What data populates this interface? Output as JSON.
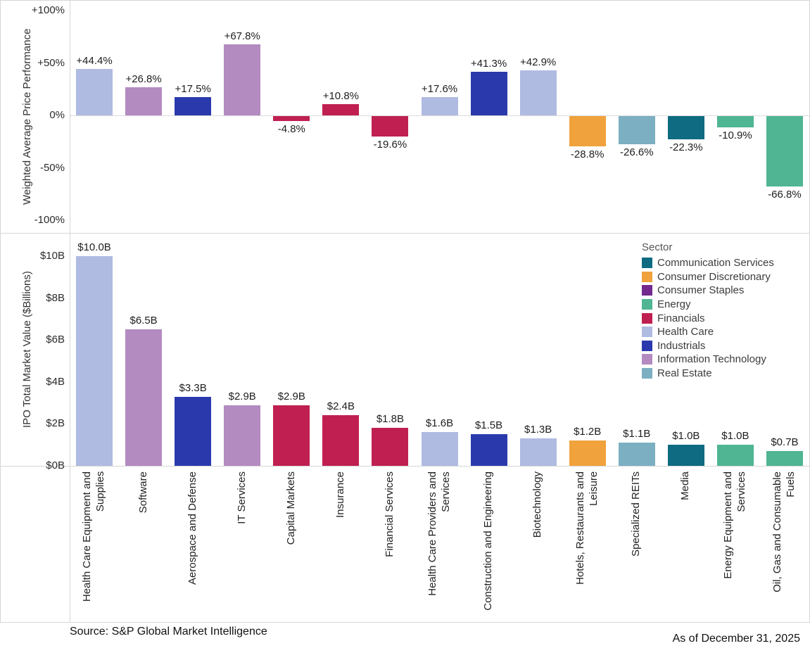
{
  "colors": {
    "sectors": {
      "Communication Services": "#0e6b81",
      "Consumer Discretionary": "#f0a23c",
      "Consumer Staples": "#73298d",
      "Energy": "#4fb592",
      "Financials": "#c02051",
      "Health Care": "#b0bbe2",
      "Industrials": "#2a3aad",
      "Information Technology": "#b38bc1",
      "Real Estate": "#7cafc2"
    },
    "axis_line": "#d6d6d6",
    "zero_line": "#b9b9b9"
  },
  "categories": [
    {
      "name": "Health Care Equipment and\nSupplies",
      "sector": "Health Care"
    },
    {
      "name": "Software",
      "sector": "Information Technology"
    },
    {
      "name": "Aerospace and Defense",
      "sector": "Industrials"
    },
    {
      "name": "IT Services",
      "sector": "Information Technology"
    },
    {
      "name": "Capital Markets",
      "sector": "Financials"
    },
    {
      "name": "Insurance",
      "sector": "Financials"
    },
    {
      "name": "Financial Services",
      "sector": "Financials"
    },
    {
      "name": "Health Care Providers and\nServices",
      "sector": "Health Care"
    },
    {
      "name": "Construction and Engineering",
      "sector": "Industrials"
    },
    {
      "name": "Biotechnology",
      "sector": "Health Care"
    },
    {
      "name": "Hotels, Restaurants and\nLeisure",
      "sector": "Consumer Discretionary"
    },
    {
      "name": "Specialized REITs",
      "sector": "Real Estate"
    },
    {
      "name": "Media",
      "sector": "Communication Services"
    },
    {
      "name": "Energy Equipment and\nServices",
      "sector": "Energy"
    },
    {
      "name": "Oil, Gas and Consumable\nFuels",
      "sector": "Energy"
    }
  ],
  "chart_data": [
    {
      "type": "bar",
      "title": "",
      "ylabel": "Weighted Average Price Performance",
      "ylim": [
        -100,
        100
      ],
      "grid": "zero-dotted-line-only",
      "categories": [
        "Health Care Equipment and Supplies",
        "Software",
        "Aerospace and Defense",
        "IT Services",
        "Capital Markets",
        "Insurance",
        "Financial Services",
        "Health Care Providers and Services",
        "Construction and Engineering",
        "Biotechnology",
        "Hotels, Restaurants and Leisure",
        "Specialized REITs",
        "Media",
        "Energy Equipment and Services",
        "Oil, Gas and Consumable Fuels"
      ],
      "values": [
        44.4,
        26.8,
        17.5,
        67.8,
        -4.8,
        10.8,
        -19.6,
        17.6,
        41.3,
        42.9,
        -28.8,
        -26.6,
        -22.3,
        -10.9,
        -66.8
      ],
      "labels": [
        "+44.4%",
        "+26.8%",
        "+17.5%",
        "+67.8%",
        "-4.8%",
        "+10.8%",
        "-19.6%",
        "+17.6%",
        "+41.3%",
        "+42.9%",
        "-28.8%",
        "-26.6%",
        "-22.3%",
        "-10.9%",
        "-66.8%"
      ],
      "yticks": [
        {
          "label": "+100%",
          "value": 100
        },
        {
          "label": "+50%",
          "value": 50
        },
        {
          "label": "0%",
          "value": 0
        },
        {
          "label": "-50%",
          "value": -50
        },
        {
          "label": "-100%",
          "value": -100
        }
      ]
    },
    {
      "type": "bar",
      "title": "",
      "ylabel": "IPO Total Market Value ($Billions)",
      "ylim": [
        0,
        10
      ],
      "grid": "off",
      "categories": [
        "Health Care Equipment and Supplies",
        "Software",
        "Aerospace and Defense",
        "IT Services",
        "Capital Markets",
        "Insurance",
        "Financial Services",
        "Health Care Providers and Services",
        "Construction and Engineering",
        "Biotechnology",
        "Hotels, Restaurants and Leisure",
        "Specialized REITs",
        "Media",
        "Energy Equipment and Services",
        "Oil, Gas and Consumable Fuels"
      ],
      "values": [
        10.0,
        6.5,
        3.3,
        2.9,
        2.9,
        2.4,
        1.8,
        1.6,
        1.5,
        1.3,
        1.2,
        1.1,
        1.0,
        1.0,
        0.7
      ],
      "labels": [
        "$10.0B",
        "$6.5B",
        "$3.3B",
        "$2.9B",
        "$2.9B",
        "$2.4B",
        "$1.8B",
        "$1.6B",
        "$1.5B",
        "$1.3B",
        "$1.2B",
        "$1.1B",
        "$1.0B",
        "$1.0B",
        "$0.7B"
      ],
      "yticks": [
        {
          "label": "$10B",
          "value": 10
        },
        {
          "label": "$8B",
          "value": 8
        },
        {
          "label": "$6B",
          "value": 6
        },
        {
          "label": "$4B",
          "value": 4
        },
        {
          "label": "$2B",
          "value": 2
        },
        {
          "label": "$0B",
          "value": 0
        }
      ]
    }
  ],
  "legend": {
    "title": "Sector",
    "items": [
      {
        "label": "Communication Services",
        "color": "#0e6b81"
      },
      {
        "label": "Consumer Discretionary",
        "color": "#f0a23c"
      },
      {
        "label": "Consumer Staples",
        "color": "#73298d"
      },
      {
        "label": "Energy",
        "color": "#4fb592"
      },
      {
        "label": "Financials",
        "color": "#c02051"
      },
      {
        "label": "Health Care",
        "color": "#b0bbe2"
      },
      {
        "label": "Industrials",
        "color": "#2a3aad"
      },
      {
        "label": "Information Technology",
        "color": "#b38bc1"
      },
      {
        "label": "Real Estate",
        "color": "#7cafc2"
      }
    ]
  },
  "footer": {
    "source": "Source: S&P Global Market Intelligence",
    "as_of": "As of December 31, 2025"
  }
}
